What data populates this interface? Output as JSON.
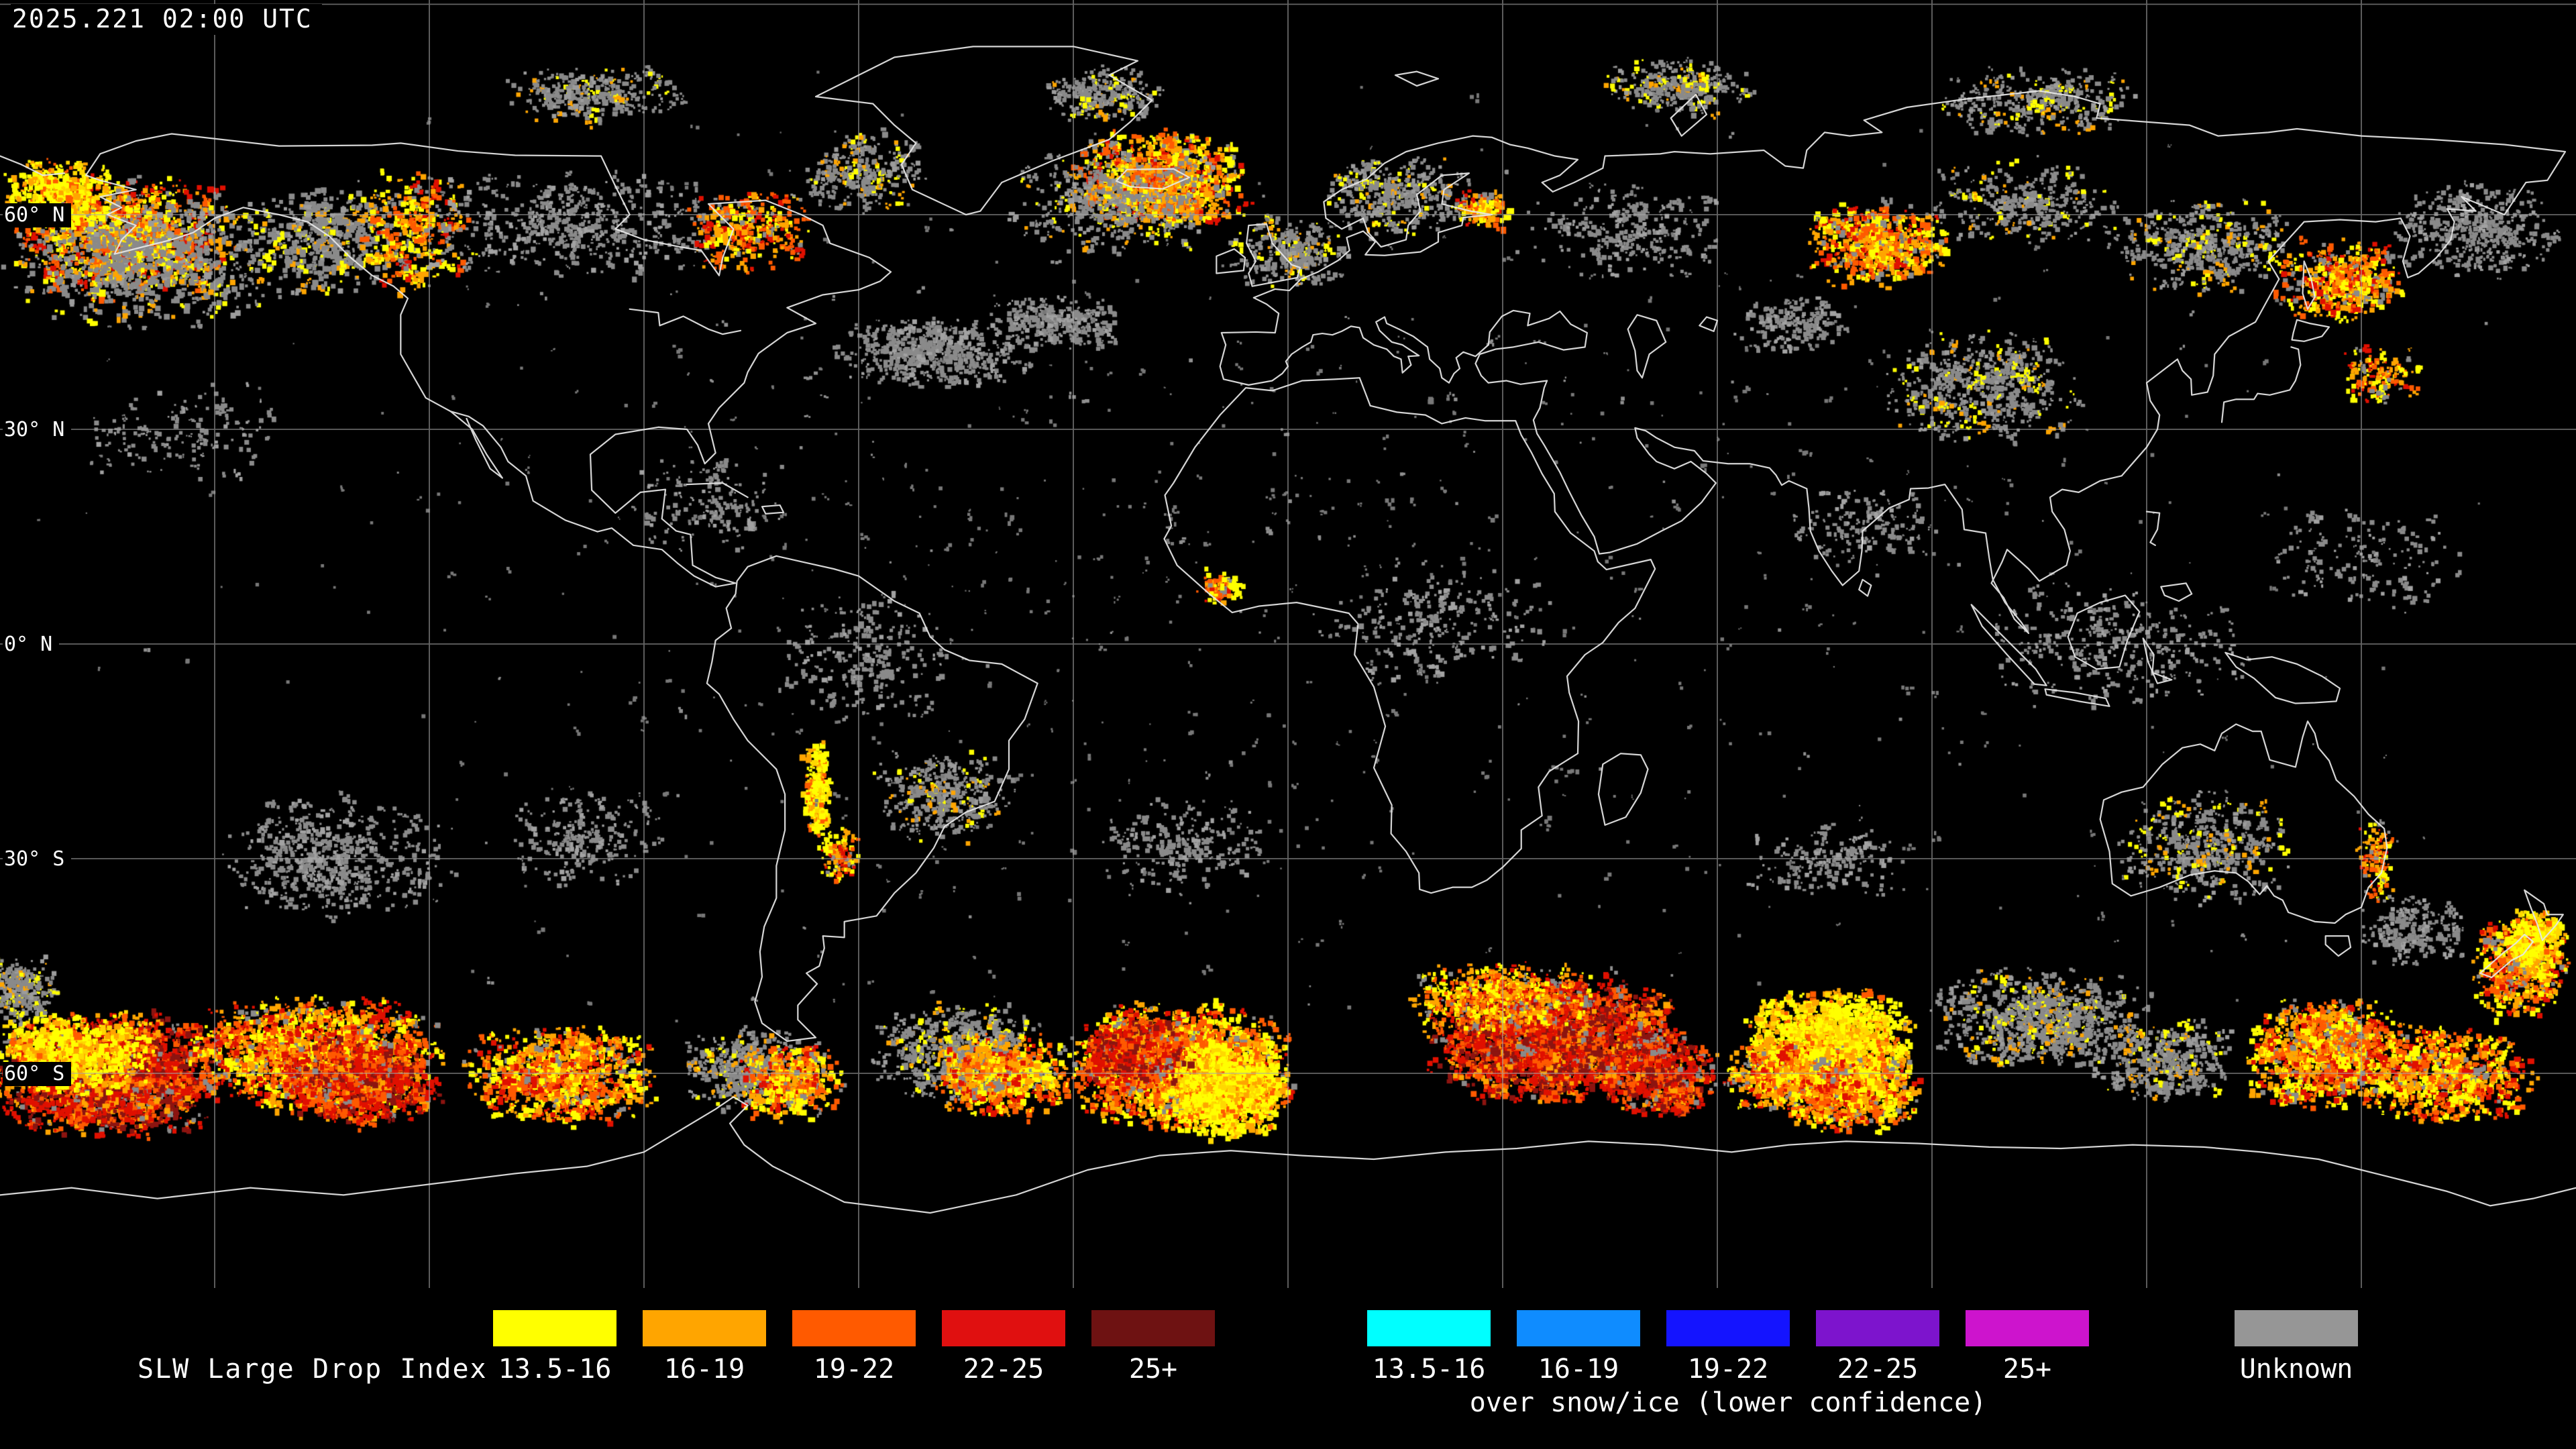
{
  "title": {
    "timestamp": "2025.221 02:00 UTC"
  },
  "map": {
    "lat_labels": [
      {
        "label": "60° N",
        "lat": 60
      },
      {
        "label": "30° N",
        "lat": 30
      },
      {
        "label": "0° N",
        "lat": 0
      },
      {
        "label": "30° S",
        "lat": -30
      },
      {
        "label": "60° S",
        "lat": -60
      }
    ],
    "grid_lon_step_deg": 30,
    "grid_lat_step_deg": 30,
    "colors": {
      "background": "#000000",
      "coastline": "#e6e6e6",
      "grid": "#a8a8a8"
    }
  },
  "legend": {
    "primary_label": "SLW Large Drop Index",
    "primary": [
      {
        "label": "13.5-16",
        "color": "#ffff00"
      },
      {
        "label": "16-19",
        "color": "#ffa500"
      },
      {
        "label": "19-22",
        "color": "#ff5a00"
      },
      {
        "label": "22-25",
        "color": "#e01010"
      },
      {
        "label": "25+",
        "color": "#6e1212"
      }
    ],
    "snow_ice": [
      {
        "label": "13.5-16",
        "color": "#00ffff"
      },
      {
        "label": "16-19",
        "color": "#0f8cff"
      },
      {
        "label": "19-22",
        "color": "#1414ff"
      },
      {
        "label": "22-25",
        "color": "#7d14cd"
      },
      {
        "label": "25+",
        "color": "#cd14cd"
      }
    ],
    "snow_ice_caption": "over snow/ice (lower confidence)",
    "unknown": {
      "label": "Unknown",
      "color": "#969696"
    }
  },
  "speckle_palettes": {
    "warm": [
      [
        "#ffff00",
        0.26
      ],
      [
        "#ffa500",
        0.28
      ],
      [
        "#ff5a00",
        0.24
      ],
      [
        "#e01000",
        0.14
      ],
      [
        "#8a8a8a",
        0.08
      ]
    ],
    "hot": [
      [
        "#e01000",
        0.38
      ],
      [
        "#8c1410",
        0.22
      ],
      [
        "#ff5a00",
        0.24
      ],
      [
        "#ffa500",
        0.1
      ],
      [
        "#8a8a8a",
        0.06
      ]
    ],
    "yellow": [
      [
        "#ffff00",
        0.55
      ],
      [
        "#ffd800",
        0.18
      ],
      [
        "#ffa500",
        0.18
      ],
      [
        "#ff5a00",
        0.09
      ]
    ],
    "gray": [
      [
        "#8a8a8a",
        0.8
      ],
      [
        "#a2a2a2",
        0.2
      ]
    ],
    "graymix": [
      [
        "#8a8a8a",
        0.68
      ],
      [
        "#9c9c9c",
        0.12
      ],
      [
        "#ffff00",
        0.11
      ],
      [
        "#ffa500",
        0.09
      ]
    ],
    "sparse": [
      [
        "#787878",
        0.85
      ],
      [
        "#909090",
        0.15
      ]
    ]
  },
  "speckle_regions": [
    {
      "lon": -163,
      "lat": 57,
      "rx": 16,
      "ry": 9,
      "n": 900,
      "s": 6,
      "p": "warm"
    },
    {
      "lon": -160,
      "lat": 54,
      "rx": 20,
      "ry": 10,
      "n": 650,
      "s": 6,
      "p": "graymix"
    },
    {
      "lon": -172,
      "lat": 63,
      "rx": 8,
      "ry": 5,
      "n": 350,
      "s": 6,
      "p": "yellow"
    },
    {
      "lon": -135,
      "lat": 57,
      "rx": 12,
      "ry": 8,
      "n": 420,
      "s": 6,
      "p": "graymix"
    },
    {
      "lon": -122,
      "lat": 58,
      "rx": 8,
      "ry": 9,
      "n": 260,
      "s": 6,
      "p": "warm"
    },
    {
      "lon": -100,
      "lat": 59,
      "rx": 24,
      "ry": 8,
      "n": 420,
      "s": 5,
      "p": "gray"
    },
    {
      "lon": -76,
      "lat": 58,
      "rx": 9,
      "ry": 6,
      "n": 260,
      "s": 6,
      "p": "warm"
    },
    {
      "lon": -60,
      "lat": 66,
      "rx": 10,
      "ry": 6,
      "n": 240,
      "s": 5,
      "p": "graymix"
    },
    {
      "lon": -97,
      "lat": 77,
      "rx": 13,
      "ry": 4,
      "n": 260,
      "s": 5,
      "p": "graymix"
    },
    {
      "lon": -26,
      "lat": 77,
      "rx": 9,
      "ry": 4,
      "n": 220,
      "s": 5,
      "p": "graymix"
    },
    {
      "lon": -18,
      "lat": 65,
      "rx": 12,
      "ry": 7,
      "n": 850,
      "s": 6,
      "p": "warm"
    },
    {
      "lon": -24,
      "lat": 62,
      "rx": 15,
      "ry": 8,
      "n": 420,
      "s": 5,
      "p": "graymix"
    },
    {
      "lon": -50,
      "lat": 41,
      "rx": 14,
      "ry": 5,
      "n": 420,
      "s": 5,
      "p": "gray"
    },
    {
      "lon": -33,
      "lat": 45,
      "rx": 10,
      "ry": 4,
      "n": 260,
      "s": 5,
      "p": "gray"
    },
    {
      "lon": 0,
      "lat": 55,
      "rx": 9,
      "ry": 5,
      "n": 240,
      "s": 5,
      "p": "graymix"
    },
    {
      "lon": 15,
      "lat": 63,
      "rx": 11,
      "ry": 6,
      "n": 330,
      "s": 5,
      "p": "graymix"
    },
    {
      "lon": 27,
      "lat": 61,
      "rx": 4,
      "ry": 2.5,
      "n": 110,
      "s": 6,
      "p": "warm"
    },
    {
      "lon": 47,
      "lat": 58,
      "rx": 14,
      "ry": 7,
      "n": 220,
      "s": 5,
      "p": "gray"
    },
    {
      "lon": 54,
      "lat": 78,
      "rx": 11,
      "ry": 4,
      "n": 240,
      "s": 5,
      "p": "graymix"
    },
    {
      "lon": 105,
      "lat": 76,
      "rx": 15,
      "ry": 5,
      "n": 280,
      "s": 5,
      "p": "graymix"
    },
    {
      "lon": 82,
      "lat": 56,
      "rx": 10,
      "ry": 6,
      "n": 500,
      "s": 6,
      "p": "warm"
    },
    {
      "lon": 103,
      "lat": 62,
      "rx": 14,
      "ry": 6,
      "n": 280,
      "s": 5,
      "p": "graymix"
    },
    {
      "lon": 128,
      "lat": 56,
      "rx": 14,
      "ry": 7,
      "n": 380,
      "s": 5,
      "p": "graymix"
    },
    {
      "lon": 147,
      "lat": 51,
      "rx": 9,
      "ry": 6,
      "n": 380,
      "s": 6,
      "p": "warm"
    },
    {
      "lon": 166,
      "lat": 58,
      "rx": 12,
      "ry": 7,
      "n": 330,
      "s": 5,
      "p": "gray"
    },
    {
      "lon": 97,
      "lat": 36,
      "rx": 15,
      "ry": 8,
      "n": 480,
      "s": 5,
      "p": "graymix"
    },
    {
      "lon": 70,
      "lat": 45,
      "rx": 8,
      "ry": 4,
      "n": 130,
      "s": 5,
      "p": "gray"
    },
    {
      "lon": 152,
      "lat": 38,
      "rx": 6,
      "ry": 4,
      "n": 120,
      "s": 5,
      "p": "warm"
    },
    {
      "lon": -155,
      "lat": 30,
      "rx": 15,
      "ry": 8,
      "n": 130,
      "s": 5,
      "p": "gray"
    },
    {
      "lon": -80,
      "lat": 20,
      "rx": 12,
      "ry": 7,
      "n": 120,
      "s": 5,
      "p": "gray"
    },
    {
      "lon": -10,
      "lat": 8,
      "rx": 3,
      "ry": 2,
      "n": 70,
      "s": 6,
      "p": "warm"
    },
    {
      "lon": 20,
      "lat": 3,
      "rx": 16,
      "ry": 9,
      "n": 200,
      "s": 5,
      "p": "gray"
    },
    {
      "lon": 80,
      "lat": 17,
      "rx": 10,
      "ry": 6,
      "n": 110,
      "s": 5,
      "p": "gray"
    },
    {
      "lon": 115,
      "lat": 0,
      "rx": 20,
      "ry": 9,
      "n": 260,
      "s": 5,
      "p": "gray"
    },
    {
      "lon": 150,
      "lat": 12,
      "rx": 14,
      "ry": 8,
      "n": 120,
      "s": 5,
      "p": "gray"
    },
    {
      "lon": -60,
      "lat": -2,
      "rx": 13,
      "ry": 9,
      "n": 200,
      "s": 5,
      "p": "gray"
    },
    {
      "lon": -66,
      "lat": -20,
      "rx": 1.8,
      "ry": 7,
      "n": 260,
      "s": 6,
      "p": "yellow"
    },
    {
      "lon": -63,
      "lat": -29,
      "rx": 3,
      "ry": 4,
      "n": 110,
      "s": 5,
      "p": "warm"
    },
    {
      "lon": -49,
      "lat": -21,
      "rx": 10,
      "ry": 7,
      "n": 300,
      "s": 5,
      "p": "graymix"
    },
    {
      "lon": -133,
      "lat": -30,
      "rx": 17,
      "ry": 9,
      "n": 450,
      "s": 5,
      "p": "gray"
    },
    {
      "lon": -98,
      "lat": -27,
      "rx": 12,
      "ry": 7,
      "n": 180,
      "s": 5,
      "p": "gray"
    },
    {
      "lon": -15,
      "lat": -28,
      "rx": 12,
      "ry": 7,
      "n": 170,
      "s": 5,
      "p": "gray"
    },
    {
      "lon": 75,
      "lat": -30,
      "rx": 12,
      "ry": 6,
      "n": 140,
      "s": 5,
      "p": "gray"
    },
    {
      "lon": 128,
      "lat": -28,
      "rx": 13,
      "ry": 8,
      "n": 380,
      "s": 5,
      "p": "graymix"
    },
    {
      "lon": 152,
      "lat": -30,
      "rx": 3,
      "ry": 6,
      "n": 100,
      "s": 5,
      "p": "warm"
    },
    {
      "lon": 157,
      "lat": -40,
      "rx": 8,
      "ry": 5,
      "n": 200,
      "s": 5,
      "p": "gray"
    },
    {
      "lon": -165,
      "lat": -60,
      "rx": 16,
      "ry": 9,
      "n": 2000,
      "s": 6,
      "p": "hot"
    },
    {
      "lon": -170,
      "lat": -57,
      "rx": 12,
      "ry": 6,
      "n": 600,
      "s": 6,
      "p": "yellow"
    },
    {
      "lon": -136,
      "lat": -57,
      "rx": 18,
      "ry": 8,
      "n": 1500,
      "s": 6,
      "p": "warm"
    },
    {
      "lon": -130,
      "lat": -61,
      "rx": 12,
      "ry": 6,
      "n": 800,
      "s": 6,
      "p": "hot"
    },
    {
      "lon": -102,
      "lat": -60,
      "rx": 14,
      "ry": 7,
      "n": 900,
      "s": 6,
      "p": "warm"
    },
    {
      "lon": -75,
      "lat": -59,
      "rx": 10,
      "ry": 6,
      "n": 420,
      "s": 5,
      "p": "graymix"
    },
    {
      "lon": -70,
      "lat": -61,
      "rx": 8,
      "ry": 5,
      "n": 330,
      "s": 6,
      "p": "warm"
    },
    {
      "lon": -46,
      "lat": -57,
      "rx": 12,
      "ry": 7,
      "n": 650,
      "s": 5,
      "p": "graymix"
    },
    {
      "lon": -40,
      "lat": -60,
      "rx": 10,
      "ry": 6,
      "n": 600,
      "s": 6,
      "p": "warm"
    },
    {
      "lon": -15,
      "lat": -59,
      "rx": 16,
      "ry": 9,
      "n": 2100,
      "s": 6,
      "p": "warm"
    },
    {
      "lon": -9,
      "lat": -62,
      "rx": 9,
      "ry": 7,
      "n": 1200,
      "s": 6,
      "p": "yellow"
    },
    {
      "lon": -22,
      "lat": -57,
      "rx": 8,
      "ry": 5,
      "n": 600,
      "s": 6,
      "p": "hot"
    },
    {
      "lon": 37,
      "lat": -55,
      "rx": 18,
      "ry": 9,
      "n": 2400,
      "s": 6,
      "p": "hot"
    },
    {
      "lon": 30,
      "lat": -49,
      "rx": 14,
      "ry": 5,
      "n": 600,
      "s": 5,
      "p": "warm"
    },
    {
      "lon": 52,
      "lat": -60,
      "rx": 8,
      "ry": 6,
      "n": 500,
      "s": 6,
      "p": "hot"
    },
    {
      "lon": 75,
      "lat": -56,
      "rx": 12,
      "ry": 8,
      "n": 1500,
      "s": 6,
      "p": "yellow"
    },
    {
      "lon": 78,
      "lat": -62,
      "rx": 10,
      "ry": 6,
      "n": 800,
      "s": 6,
      "p": "warm"
    },
    {
      "lon": 68,
      "lat": -60,
      "rx": 7,
      "ry": 5,
      "n": 400,
      "s": 6,
      "p": "warm"
    },
    {
      "lon": 105,
      "lat": -52,
      "rx": 16,
      "ry": 7,
      "n": 750,
      "s": 5,
      "p": "graymix"
    },
    {
      "lon": 122,
      "lat": -58,
      "rx": 10,
      "ry": 6,
      "n": 380,
      "s": 5,
      "p": "graymix"
    },
    {
      "lon": 145,
      "lat": -57,
      "rx": 12,
      "ry": 8,
      "n": 1000,
      "s": 6,
      "p": "warm"
    },
    {
      "lon": 162,
      "lat": -60,
      "rx": 12,
      "ry": 7,
      "n": 700,
      "s": 6,
      "p": "warm"
    },
    {
      "lon": 172,
      "lat": -45,
      "rx": 7,
      "ry": 7,
      "n": 450,
      "s": 6,
      "p": "warm"
    },
    {
      "lon": 174,
      "lat": -41,
      "rx": 4,
      "ry": 4,
      "n": 260,
      "s": 6,
      "p": "yellow"
    },
    {
      "lon": -178,
      "lat": -48,
      "rx": 6,
      "ry": 5,
      "n": 260,
      "s": 5,
      "p": "graymix"
    },
    {
      "lon": 0,
      "lat": 10,
      "rx": 180,
      "ry": 75,
      "n": 900,
      "s": 4,
      "p": "sparse"
    }
  ]
}
